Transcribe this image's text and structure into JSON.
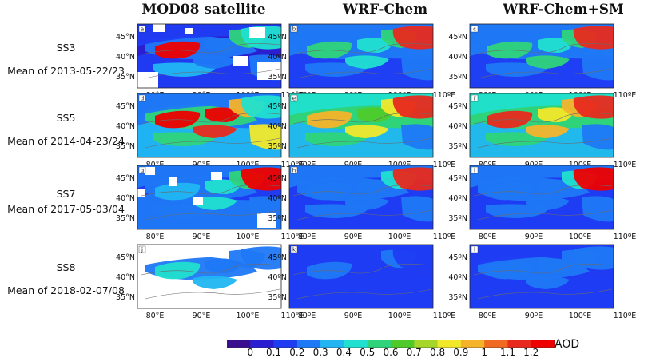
{
  "columns": [
    {
      "title": "MOD08 satellite"
    },
    {
      "title": "WRF-Chem"
    },
    {
      "title": "WRF-Chem+SM"
    }
  ],
  "rows": [
    {
      "event": "SS3",
      "period": "Mean of 2013-05-22/23",
      "panels": [
        {
          "letter": "a",
          "aod": [
            0.05,
            0.15,
            0.2,
            0.1,
            1.3,
            0.2,
            0.35,
            0.3,
            0.5,
            0.4,
            0.3
          ]
        },
        {
          "letter": "b",
          "aod": [
            0.2,
            0.15,
            0.3,
            0.25,
            0.5,
            0.4,
            0.3,
            0.45,
            0.55,
            1.1,
            0.2
          ]
        },
        {
          "letter": "c",
          "aod": [
            0.2,
            0.15,
            0.3,
            0.25,
            0.6,
            0.45,
            0.3,
            0.5,
            0.55,
            1.1,
            0.2
          ]
        }
      ]
    },
    {
      "event": "SS5",
      "period": "Mean of 2014-04-23/24",
      "panels": [
        {
          "letter": "d",
          "aod": [
            0.3,
            0.35,
            0.5,
            0.2,
            1.3,
            1.3,
            0.6,
            1.2,
            0.9,
            0.4,
            0.8
          ]
        },
        {
          "letter": "e",
          "aod": [
            0.5,
            0.35,
            0.6,
            0.4,
            0.9,
            0.7,
            0.5,
            0.8,
            0.8,
            1.2,
            0.3
          ]
        },
        {
          "letter": "f",
          "aod": [
            0.5,
            0.35,
            0.6,
            0.4,
            1.1,
            0.8,
            0.5,
            0.9,
            0.9,
            1.2,
            0.3
          ]
        }
      ]
    },
    {
      "event": "SS7",
      "period": "Mean of 2017-05-03/04",
      "panels": [
        {
          "letter": "g",
          "aod": [
            0.15,
            0.25,
            0.2,
            0.3,
            0.35,
            0.4,
            0.3,
            0.45,
            0.5,
            1.3,
            0.3
          ]
        },
        {
          "letter": "h",
          "aod": [
            0.15,
            0.15,
            0.2,
            0.25,
            0.3,
            0.3,
            0.2,
            0.3,
            0.4,
            1.2,
            0.2
          ]
        },
        {
          "letter": "i",
          "aod": [
            0.15,
            0.15,
            0.2,
            0.25,
            0.3,
            0.3,
            0.2,
            0.3,
            0.4,
            1.3,
            0.2
          ]
        }
      ]
    },
    {
      "event": "SS8",
      "period": "Mean of  2018-02-07/08",
      "panels": [
        {
          "letter": "j",
          "aod": [
            0.0,
            0.0,
            0.2,
            0.0,
            0.45,
            0.3,
            0.0,
            0.35,
            0.2,
            0.3,
            0.0
          ]
        },
        {
          "letter": "k",
          "aod": [
            0.1,
            0.12,
            0.15,
            0.1,
            0.2,
            0.15,
            0.1,
            0.15,
            0.2,
            0.15,
            0.1
          ]
        },
        {
          "letter": "l",
          "aod": [
            0.12,
            0.15,
            0.2,
            0.15,
            0.25,
            0.2,
            0.15,
            0.25,
            0.3,
            0.25,
            0.15
          ]
        }
      ]
    }
  ],
  "axes": {
    "lon_ticks": [
      "80°E",
      "90°E",
      "100°E",
      "110°E"
    ],
    "lat_ticks": [
      "45°N",
      "40°N",
      "35°N"
    ],
    "lon_ticks_model": [
      "80ºE",
      "90ºE",
      "100ºE",
      "110ºE"
    ],
    "lat_ticks_model": [
      "45ºN",
      "40ºN",
      "35ºN"
    ]
  },
  "colorbar": {
    "unit": "AOD",
    "labels": [
      "0",
      "0.1",
      "0.2",
      "0.3",
      "0.4",
      "0.5",
      "0.6",
      "0.7",
      "0.8",
      "0.9",
      "1",
      "1.1",
      "1.2"
    ],
    "colors": [
      "#3a0f8f",
      "#2a1ed0",
      "#1f3cf2",
      "#1f78f5",
      "#21b6f2",
      "#21e0cf",
      "#2fd47a",
      "#4ecb2a",
      "#a6d62a",
      "#f2e82a",
      "#f5b32a",
      "#f06a22",
      "#e82a1e",
      "#ee0000"
    ]
  }
}
